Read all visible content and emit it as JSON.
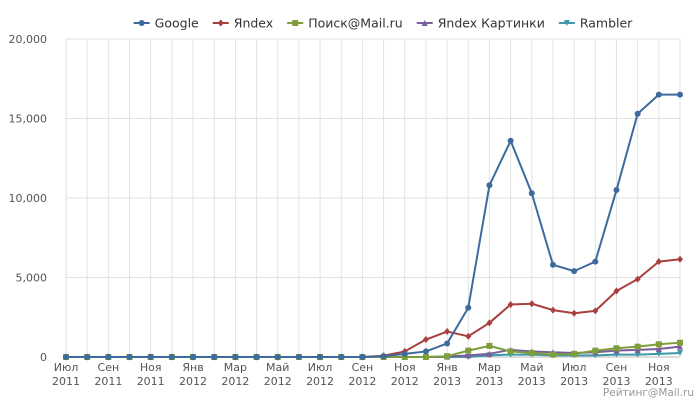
{
  "chart_data": {
    "type": "line",
    "title": "",
    "xlabel": "",
    "ylabel": "",
    "ylim": [
      0,
      20000
    ],
    "yticks": [
      0,
      5000,
      10000,
      15000,
      20000
    ],
    "ytick_labels": [
      "0",
      "5,000",
      "10,000",
      "15,000",
      "20,000"
    ],
    "grid": true,
    "legend_placement": "top-center",
    "x": [
      "2011-07",
      "2011-08",
      "2011-09",
      "2011-10",
      "2011-11",
      "2011-12",
      "2012-01",
      "2012-02",
      "2012-03",
      "2012-04",
      "2012-05",
      "2012-06",
      "2012-07",
      "2012-08",
      "2012-09",
      "2012-10",
      "2012-11",
      "2012-12",
      "2013-01",
      "2013-02",
      "2013-03",
      "2013-04",
      "2013-05",
      "2013-06",
      "2013-07",
      "2013-08",
      "2013-09",
      "2013-10",
      "2013-11",
      "2013-12"
    ],
    "x_tick_labels": [
      {
        "month": "Июл",
        "year": "2011"
      },
      {
        "month": "Сен",
        "year": "2011"
      },
      {
        "month": "Ноя",
        "year": "2011"
      },
      {
        "month": "Янв",
        "year": "2012"
      },
      {
        "month": "Мар",
        "year": "2012"
      },
      {
        "month": "Май",
        "year": "2012"
      },
      {
        "month": "Июл",
        "year": "2012"
      },
      {
        "month": "Сен",
        "year": "2012"
      },
      {
        "month": "Ноя",
        "year": "2012"
      },
      {
        "month": "Янв",
        "year": "2013"
      },
      {
        "month": "Мар",
        "year": "2013"
      },
      {
        "month": "Май",
        "year": "2013"
      },
      {
        "month": "Июл",
        "year": "2013"
      },
      {
        "month": "Сен",
        "year": "2013"
      },
      {
        "month": "Ноя",
        "year": "2013"
      }
    ],
    "series": [
      {
        "name": "Google",
        "color": "#3d6b9e",
        "marker": "circle",
        "values": [
          0,
          0,
          0,
          0,
          0,
          0,
          0,
          0,
          0,
          0,
          0,
          0,
          0,
          0,
          0,
          50,
          200,
          350,
          850,
          3100,
          10800,
          13600,
          10300,
          5800,
          5400,
          6000,
          10500,
          15300,
          16500,
          16500
        ]
      },
      {
        "name": "Яndex",
        "color": "#a8403e",
        "marker": "diamond",
        "values": [
          0,
          0,
          0,
          0,
          0,
          0,
          0,
          0,
          0,
          0,
          0,
          0,
          0,
          0,
          0,
          80,
          350,
          1100,
          1600,
          1300,
          2150,
          3300,
          3350,
          2950,
          2750,
          2900,
          4150,
          4900,
          6000,
          6150
        ]
      },
      {
        "name": "Поиск@Mail.ru",
        "color": "#7d9e3a",
        "marker": "square",
        "values": [
          0,
          0,
          0,
          0,
          0,
          0,
          0,
          0,
          0,
          0,
          0,
          0,
          0,
          0,
          0,
          0,
          0,
          0,
          50,
          400,
          700,
          350,
          250,
          150,
          200,
          400,
          550,
          650,
          800,
          900
        ]
      },
      {
        "name": "Яndex Картинки",
        "color": "#7a5e9c",
        "marker": "triangle-up",
        "values": [
          0,
          0,
          0,
          0,
          0,
          0,
          0,
          0,
          0,
          0,
          0,
          0,
          0,
          0,
          0,
          0,
          0,
          0,
          20,
          100,
          200,
          450,
          350,
          300,
          250,
          300,
          400,
          450,
          500,
          650
        ]
      },
      {
        "name": "Rambler",
        "color": "#3d98a8",
        "marker": "triangle-down",
        "values": [
          0,
          0,
          0,
          0,
          0,
          0,
          0,
          0,
          0,
          0,
          0,
          0,
          0,
          0,
          0,
          0,
          0,
          0,
          0,
          0,
          100,
          150,
          150,
          100,
          100,
          100,
          150,
          150,
          200,
          250
        ]
      }
    ]
  },
  "credit": "Рейтинг@Mail.ru"
}
